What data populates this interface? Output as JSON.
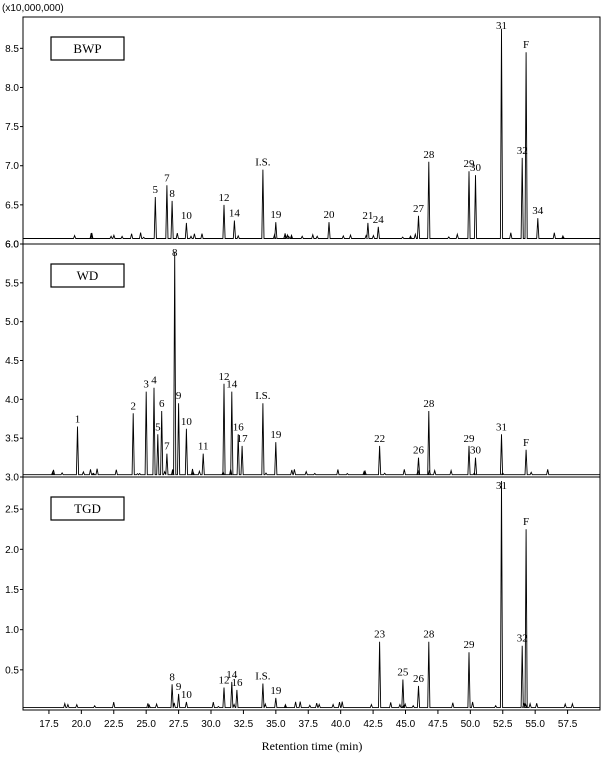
{
  "chart_data": {
    "type": "line",
    "y_unit": "(x10,000,000)",
    "xlabel": "Retention time (min)",
    "xlim": [
      15.5,
      60.0
    ],
    "x_ticks": [
      "17.5",
      "20.0",
      "22.5",
      "25.0",
      "27.5",
      "30.0",
      "32.5",
      "35.0",
      "37.5",
      "40.0",
      "42.5",
      "45.0",
      "47.5",
      "50.0",
      "52.5",
      "55.0",
      "57.5"
    ],
    "panels": [
      {
        "name": "BWP",
        "ylim": [
          6.0,
          8.9
        ],
        "y_ticks": [
          "6.0",
          "6.5",
          "7.0",
          "7.5",
          "8.0",
          "8.5"
        ],
        "baseline": 6.07,
        "peaks": [
          {
            "label": "5",
            "x": 25.7,
            "y": 6.6
          },
          {
            "label": "7",
            "x": 26.6,
            "y": 6.75
          },
          {
            "label": "8",
            "x": 27.0,
            "y": 6.55
          },
          {
            "label": "10",
            "x": 28.1,
            "y": 6.27
          },
          {
            "label": "12",
            "x": 31.0,
            "y": 6.5
          },
          {
            "label": "14",
            "x": 31.8,
            "y": 6.3
          },
          {
            "label": "I.S.",
            "x": 34.0,
            "y": 6.95
          },
          {
            "label": "19",
            "x": 35.0,
            "y": 6.28
          },
          {
            "label": "20",
            "x": 39.1,
            "y": 6.28
          },
          {
            "label": "21",
            "x": 42.1,
            "y": 6.27
          },
          {
            "label": "24",
            "x": 42.9,
            "y": 6.22
          },
          {
            "label": "27",
            "x": 46.0,
            "y": 6.36
          },
          {
            "label": "28",
            "x": 46.8,
            "y": 7.05
          },
          {
            "label": "29",
            "x": 49.9,
            "y": 6.93
          },
          {
            "label": "30",
            "x": 50.4,
            "y": 6.88
          },
          {
            "label": "31",
            "x": 52.4,
            "y": 8.75
          },
          {
            "label": "32",
            "x": 54.0,
            "y": 7.1
          },
          {
            "label": "F",
            "x": 54.3,
            "y": 8.45
          },
          {
            "label": "34",
            "x": 55.2,
            "y": 6.33
          }
        ]
      },
      {
        "name": "WD",
        "ylim": [
          3.0,
          6.0
        ],
        "y_ticks": [
          "3.0",
          "3.5",
          "4.0",
          "4.5",
          "5.0",
          "5.5",
          "6.0"
        ],
        "baseline": 3.03,
        "peaks": [
          {
            "label": "1",
            "x": 19.7,
            "y": 3.65
          },
          {
            "label": "2",
            "x": 24.0,
            "y": 3.82
          },
          {
            "label": "3",
            "x": 25.0,
            "y": 4.1
          },
          {
            "label": "4",
            "x": 25.6,
            "y": 4.15
          },
          {
            "label": "5",
            "x": 25.9,
            "y": 3.55
          },
          {
            "label": "6",
            "x": 26.2,
            "y": 3.85
          },
          {
            "label": "7",
            "x": 26.6,
            "y": 3.3
          },
          {
            "label": "8",
            "x": 27.2,
            "y": 5.9
          },
          {
            "label": "9",
            "x": 27.5,
            "y": 3.95
          },
          {
            "label": "10",
            "x": 28.1,
            "y": 3.62
          },
          {
            "label": "11",
            "x": 29.4,
            "y": 3.3
          },
          {
            "label": "12",
            "x": 31.0,
            "y": 4.2
          },
          {
            "label": "14",
            "x": 31.6,
            "y": 4.1
          },
          {
            "label": "16",
            "x": 32.1,
            "y": 3.55
          },
          {
            "label": "I.S.",
            "x": 34.0,
            "y": 3.95
          },
          {
            "label": "17",
            "x": 32.4,
            "y": 3.4
          },
          {
            "label": "19",
            "x": 35.0,
            "y": 3.45
          },
          {
            "label": "22",
            "x": 43.0,
            "y": 3.4
          },
          {
            "label": "26",
            "x": 46.0,
            "y": 3.25
          },
          {
            "label": "28",
            "x": 46.8,
            "y": 3.85
          },
          {
            "label": "29",
            "x": 49.9,
            "y": 3.4
          },
          {
            "label": "30",
            "x": 50.4,
            "y": 3.25
          },
          {
            "label": "31",
            "x": 52.4,
            "y": 3.55
          },
          {
            "label": "F",
            "x": 54.3,
            "y": 3.35
          }
        ]
      },
      {
        "name": "TGD",
        "ylim": [
          0.0,
          2.9
        ],
        "y_ticks": [
          "0.5",
          "1.0",
          "1.5",
          "2.0",
          "2.5"
        ],
        "baseline": 0.03,
        "peaks": [
          {
            "label": "8",
            "x": 27.0,
            "y": 0.32
          },
          {
            "label": "9",
            "x": 27.5,
            "y": 0.2
          },
          {
            "label": "10",
            "x": 28.1,
            "y": 0.1
          },
          {
            "label": "12",
            "x": 31.0,
            "y": 0.28
          },
          {
            "label": "14",
            "x": 31.6,
            "y": 0.35
          },
          {
            "label": "16",
            "x": 32.0,
            "y": 0.25
          },
          {
            "label": "I.S.",
            "x": 34.0,
            "y": 0.33
          },
          {
            "label": "19",
            "x": 35.0,
            "y": 0.15
          },
          {
            "label": "23",
            "x": 43.0,
            "y": 0.85
          },
          {
            "label": "25",
            "x": 44.8,
            "y": 0.38
          },
          {
            "label": "26",
            "x": 46.0,
            "y": 0.3
          },
          {
            "label": "28",
            "x": 46.8,
            "y": 0.85
          },
          {
            "label": "29",
            "x": 49.9,
            "y": 0.72
          },
          {
            "label": "31",
            "x": 52.4,
            "y": 2.85
          },
          {
            "label": "32",
            "x": 54.0,
            "y": 0.8
          },
          {
            "label": "F",
            "x": 54.3,
            "y": 2.25
          }
        ]
      }
    ]
  }
}
